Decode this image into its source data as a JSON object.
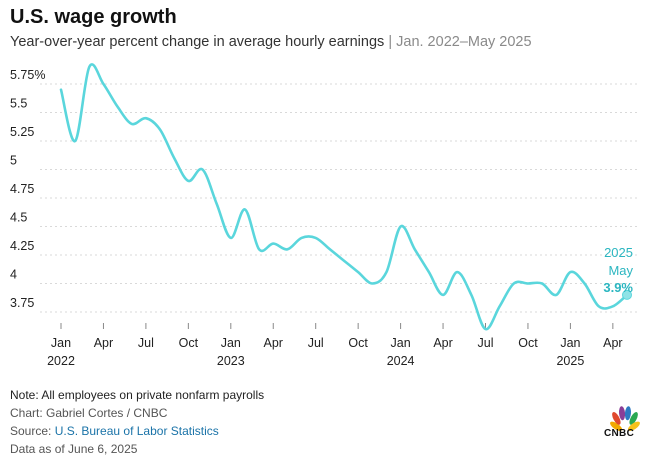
{
  "header": {
    "title": "U.S. wage growth",
    "subtitle": "Year-over-year percent change in average hourly earnings",
    "separator": "|",
    "date_range": "Jan. 2022–May 2025"
  },
  "annotation": {
    "year": "2025",
    "month": "May",
    "value_label": "3.9%"
  },
  "footer": {
    "note": "Note: All employees on private nonfarm payrolls",
    "credit": "Chart: Gabriel Cortes / CNBC",
    "source_prefix": "Source:",
    "source_link": "U.S. Bureau of Labor Statistics",
    "data_as_of": "Data as of June 6, 2025"
  },
  "logo": {
    "text": "CNBC",
    "icon": "peacock-logo-icon"
  },
  "colors": {
    "line": "#5ad6dc",
    "label": "#2bb6c0",
    "grid": "#d9d9d9"
  },
  "chart_data": {
    "type": "line",
    "x": [
      "2022-01",
      "2022-02",
      "2022-03",
      "2022-04",
      "2022-05",
      "2022-06",
      "2022-07",
      "2022-08",
      "2022-09",
      "2022-10",
      "2022-11",
      "2022-12",
      "2023-01",
      "2023-02",
      "2023-03",
      "2023-04",
      "2023-05",
      "2023-06",
      "2023-07",
      "2023-08",
      "2023-09",
      "2023-10",
      "2023-11",
      "2023-12",
      "2024-01",
      "2024-02",
      "2024-03",
      "2024-04",
      "2024-05",
      "2024-06",
      "2024-07",
      "2024-08",
      "2024-09",
      "2024-10",
      "2024-11",
      "2024-12",
      "2025-01",
      "2025-02",
      "2025-03",
      "2025-04",
      "2025-05"
    ],
    "series": [
      {
        "values": [
          5.7,
          5.25,
          5.9,
          5.75,
          5.55,
          5.4,
          5.45,
          5.35,
          5.1,
          4.9,
          5.0,
          4.7,
          4.4,
          4.65,
          4.3,
          4.35,
          4.3,
          4.4,
          4.4,
          4.3,
          4.2,
          4.1,
          4.0,
          4.1,
          4.5,
          4.3,
          4.1,
          3.9,
          4.1,
          3.9,
          3.6,
          3.8,
          4.0,
          4.0,
          4.0,
          3.9,
          4.1,
          4.0,
          3.8,
          3.8,
          3.9
        ]
      }
    ],
    "y_ticks": [
      "5.75%",
      "5.5",
      "5.25",
      "5",
      "4.75",
      "4.5",
      "4.25",
      "4",
      "3.75"
    ],
    "y_tick_values": [
      5.75,
      5.5,
      5.25,
      5.0,
      4.75,
      4.5,
      4.25,
      4.0,
      3.75
    ],
    "x_ticks": [
      {
        "month": "Jan",
        "year": "2022",
        "x": "2022-01"
      },
      {
        "month": "Apr",
        "year": "",
        "x": "2022-04"
      },
      {
        "month": "Jul",
        "year": "",
        "x": "2022-07"
      },
      {
        "month": "Oct",
        "year": "",
        "x": "2022-10"
      },
      {
        "month": "Jan",
        "year": "2023",
        "x": "2023-01"
      },
      {
        "month": "Apr",
        "year": "",
        "x": "2023-04"
      },
      {
        "month": "Jul",
        "year": "",
        "x": "2023-07"
      },
      {
        "month": "Oct",
        "year": "",
        "x": "2023-10"
      },
      {
        "month": "Jan",
        "year": "2024",
        "x": "2024-01"
      },
      {
        "month": "Apr",
        "year": "",
        "x": "2024-04"
      },
      {
        "month": "Jul",
        "year": "",
        "x": "2024-07"
      },
      {
        "month": "Oct",
        "year": "",
        "x": "2024-10"
      },
      {
        "month": "Jan",
        "year": "2025",
        "x": "2025-01"
      },
      {
        "month": "Apr",
        "year": "",
        "x": "2025-04"
      }
    ],
    "ylim": [
      3.6,
      5.9
    ],
    "grid": true,
    "legend": "none"
  }
}
